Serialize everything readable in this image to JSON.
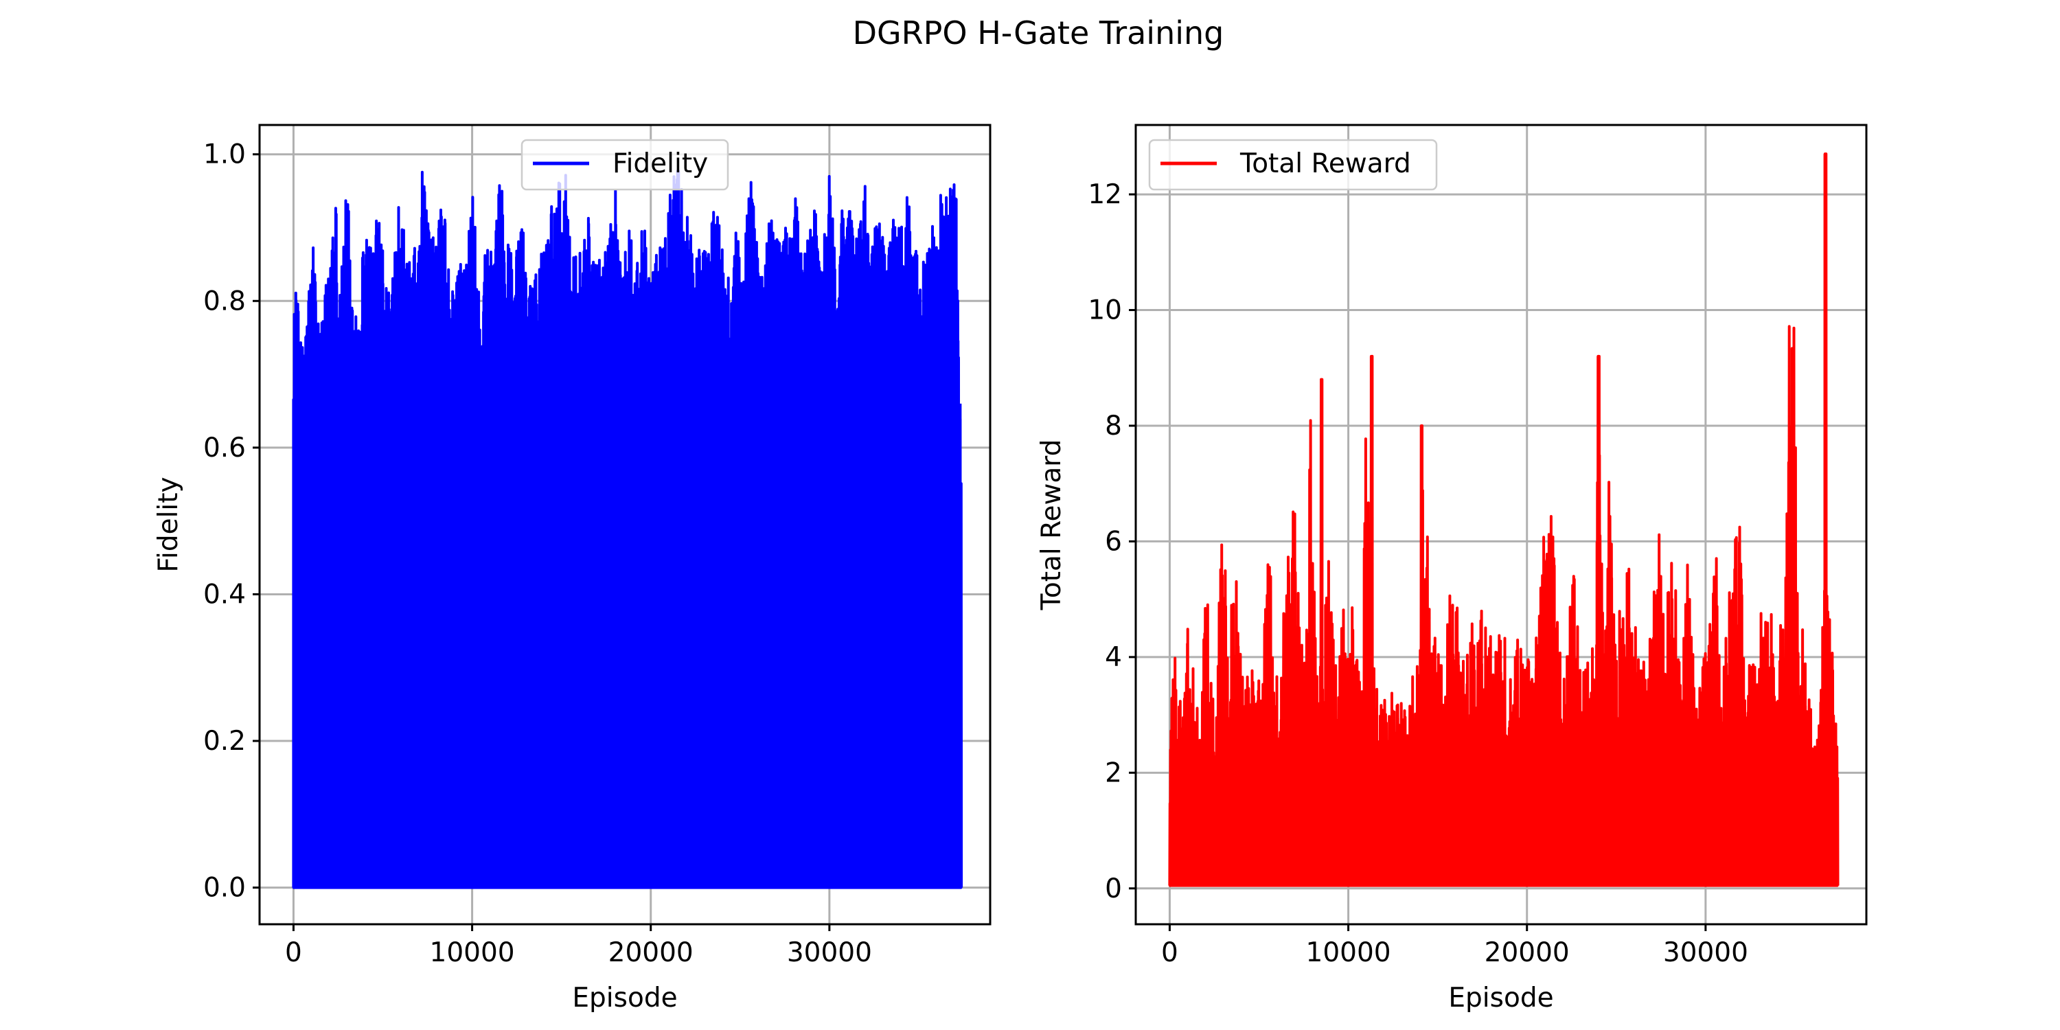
{
  "figure": {
    "title": "DGRPO H-Gate Training"
  },
  "chart_data": [
    {
      "type": "line",
      "title": "",
      "xlabel": "Episode",
      "ylabel": "Fidelity",
      "xlim": [
        -1900,
        39000
      ],
      "ylim": [
        -0.05,
        1.04
      ],
      "xticks": [
        0,
        10000,
        20000,
        30000
      ],
      "yticks": [
        0.0,
        0.2,
        0.4,
        0.6,
        0.8,
        1.0
      ],
      "xtick_labels": [
        "0",
        "10000",
        "20000",
        "30000"
      ],
      "ytick_labels": [
        "0.0",
        "0.2",
        "0.4",
        "0.6",
        "0.8",
        "1.0"
      ],
      "grid": true,
      "legend": {
        "placement": "upper-center",
        "entries": [
          "Fidelity"
        ]
      },
      "series": [
        {
          "name": "Fidelity",
          "color": "#0000ff",
          "x_range": [
            0,
            37400
          ],
          "baseline": 0.0,
          "envelope_x": [
            0,
            120,
            300,
            500,
            800,
            1100,
            1300,
            1600,
            2000,
            2300,
            2600,
            3000,
            3300,
            3600,
            4000,
            4400,
            4800,
            5200,
            5600,
            6000,
            6400,
            6800,
            7200,
            7600,
            8000,
            8400,
            8800,
            9200,
            9600,
            10000,
            10400,
            10800,
            11200,
            11600,
            12000,
            12400,
            12800,
            13200,
            13600,
            14000,
            14400,
            14800,
            15200,
            15600,
            16000,
            16400,
            16800,
            17200,
            17600,
            18000,
            18400,
            18800,
            19200,
            19600,
            20000,
            20400,
            20800,
            21200,
            21600,
            22000,
            22400,
            22800,
            23200,
            23600,
            24000,
            24400,
            24800,
            25200,
            25600,
            26000,
            26400,
            26800,
            27200,
            27600,
            28000,
            28400,
            28800,
            29200,
            29600,
            30000,
            30400,
            30800,
            31200,
            31600,
            32000,
            32400,
            32800,
            33200,
            33600,
            34000,
            34400,
            34800,
            35200,
            35600,
            36000,
            36400,
            36800,
            37100,
            37400
          ],
          "envelope_y": [
            0.82,
            0.84,
            0.78,
            0.74,
            0.8,
            0.89,
            0.8,
            0.78,
            0.87,
            0.97,
            0.84,
            0.97,
            0.82,
            0.8,
            0.91,
            0.88,
            0.93,
            0.84,
            0.87,
            0.96,
            0.84,
            0.9,
            0.98,
            0.92,
            0.88,
            0.96,
            0.8,
            0.87,
            0.84,
            0.97,
            0.8,
            0.88,
            0.86,
            0.98,
            0.89,
            0.86,
            0.91,
            0.84,
            0.86,
            0.88,
            0.93,
            0.96,
            0.98,
            0.9,
            0.87,
            0.93,
            0.88,
            0.85,
            0.89,
            0.97,
            0.86,
            0.9,
            0.88,
            0.91,
            0.82,
            0.88,
            0.89,
            0.97,
            0.98,
            0.92,
            0.87,
            0.89,
            0.86,
            0.95,
            0.88,
            0.84,
            0.9,
            0.87,
            0.97,
            0.88,
            0.86,
            0.95,
            0.88,
            0.91,
            0.98,
            0.87,
            0.9,
            0.93,
            0.85,
            0.99,
            0.87,
            0.95,
            0.92,
            0.89,
            0.96,
            0.88,
            0.93,
            0.86,
            0.93,
            0.9,
            0.95,
            0.88,
            0.85,
            0.9,
            0.92,
            0.97,
            0.96,
            0.98,
            0.52
          ]
        }
      ]
    },
    {
      "type": "line",
      "title": "",
      "xlabel": "Episode",
      "ylabel": "Total Reward",
      "xlim": [
        -1900,
        39000
      ],
      "ylim": [
        -0.62,
        13.2
      ],
      "xticks": [
        0,
        10000,
        20000,
        30000
      ],
      "yticks": [
        0,
        2,
        4,
        6,
        8,
        10,
        12
      ],
      "xtick_labels": [
        "0",
        "10000",
        "20000",
        "30000"
      ],
      "ytick_labels": [
        "0",
        "2",
        "4",
        "6",
        "8",
        "10",
        "12"
      ],
      "grid": true,
      "legend": {
        "placement": "upper-left",
        "entries": [
          "Total Reward"
        ]
      },
      "series": [
        {
          "name": "Total Reward",
          "color": "#ff0000",
          "x_range": [
            0,
            37400
          ],
          "baseline": 0.05,
          "envelope_x": [
            0,
            150,
            400,
            700,
            1000,
            1200,
            1500,
            1800,
            2000,
            2300,
            2600,
            3000,
            3300,
            3600,
            4000,
            4300,
            4600,
            4900,
            5200,
            5600,
            5900,
            6200,
            6600,
            7000,
            7300,
            7600,
            7900,
            8200,
            8600,
            8900,
            9300,
            9600,
            10000,
            10400,
            10800,
            11000,
            11300,
            11600,
            12000,
            12400,
            12800,
            13200,
            13600,
            14000,
            14200,
            14600,
            15000,
            15400,
            15800,
            16200,
            16600,
            17000,
            17400,
            17800,
            18200,
            18600,
            19000,
            19400,
            19800,
            20200,
            20600,
            21000,
            21400,
            21800,
            22200,
            22600,
            23000,
            23400,
            23800,
            24000,
            24300,
            24600,
            25000,
            25400,
            25800,
            26200,
            26600,
            27000,
            27400,
            27800,
            28200,
            28600,
            29000,
            29400,
            29800,
            30200,
            30600,
            31000,
            31400,
            31800,
            32200,
            32600,
            33000,
            33300,
            33600,
            34000,
            34400,
            34800,
            35200,
            35600,
            36000,
            36400,
            36700,
            36900,
            37100,
            37400
          ],
          "envelope_y": [
            2.4,
            4.3,
            3.8,
            3.1,
            4.8,
            4.0,
            3.5,
            3.2,
            5.9,
            4.3,
            3.7,
            6.8,
            3.9,
            5.9,
            4.5,
            3.6,
            4.7,
            3.5,
            3.9,
            6.5,
            4.2,
            3.8,
            6.1,
            6.7,
            5.2,
            4.1,
            8.8,
            3.9,
            4.5,
            5.7,
            3.9,
            4.8,
            5.2,
            4.7,
            3.3,
            9.2,
            4.2,
            3.6,
            3.2,
            4.0,
            3.4,
            3.2,
            3.7,
            4.0,
            8.0,
            5.4,
            4.1,
            4.0,
            5.8,
            4.6,
            3.9,
            5.2,
            4.9,
            4.7,
            4.0,
            4.8,
            3.8,
            4.4,
            4.8,
            4.2,
            4.5,
            6.4,
            7.3,
            4.4,
            3.9,
            5.7,
            4.0,
            4.1,
            4.4,
            9.2,
            3.8,
            7.4,
            4.3,
            5.4,
            5.8,
            4.1,
            3.9,
            4.6,
            6.6,
            5.2,
            6.2,
            4.3,
            5.9,
            4.0,
            4.2,
            4.5,
            5.8,
            4.2,
            5.5,
            7.0,
            4.2,
            3.9,
            4.9,
            4.7,
            5.1,
            3.8,
            5.5,
            12.7,
            4.5,
            5.0,
            2.4,
            4.3,
            5.4,
            4.8,
            4.2,
            2.5
          ],
          "spikes": [
            {
              "x": 8500,
              "y": 8.8
            },
            {
              "x": 11300,
              "y": 9.2
            },
            {
              "x": 14100,
              "y": 8.0
            },
            {
              "x": 24000,
              "y": 9.2
            },
            {
              "x": 36700,
              "y": 12.7
            }
          ]
        }
      ]
    }
  ]
}
